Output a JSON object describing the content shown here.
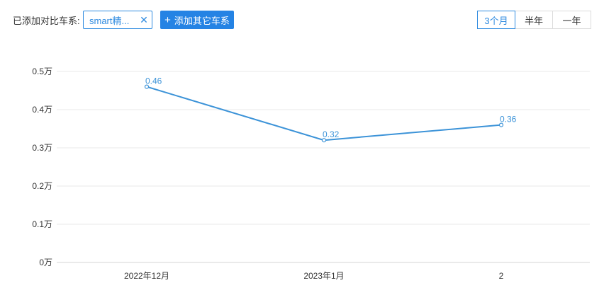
{
  "toolbar": {
    "compare_label": "已添加对比车系:",
    "selected_series_chip": "smart精...",
    "remove_chip_icon": "close-icon",
    "add_button_label": "添加其它车系",
    "add_button_icon": "plus-icon",
    "range_options": [
      "3个月",
      "半年",
      "一年"
    ],
    "active_range": "3个月"
  },
  "colors": {
    "accent": "#2583e4",
    "line": "#3c93d8",
    "grid": "#e8e8e8"
  },
  "chart_data": {
    "type": "line",
    "categories": [
      "2022年12月",
      "2023年1月",
      "2"
    ],
    "values": [
      0.46,
      0.32,
      0.36
    ],
    "data_labels": [
      "0.46",
      "0.32",
      "0.36"
    ],
    "y_ticks": [
      "0万",
      "0.1万",
      "0.2万",
      "0.3万",
      "0.4万",
      "0.5万"
    ],
    "ylim": [
      0,
      0.5
    ],
    "grid": true,
    "legend": "none"
  }
}
